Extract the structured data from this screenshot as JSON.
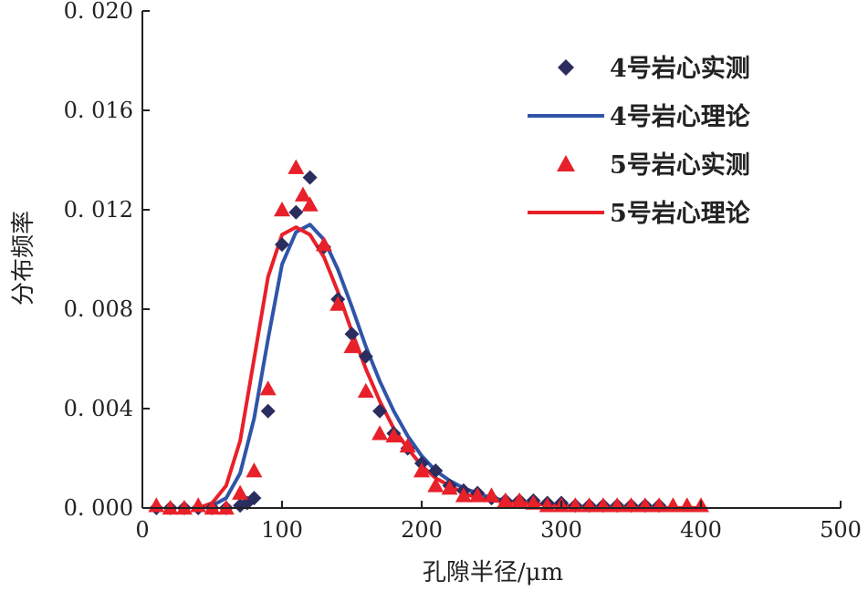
{
  "chart_data": {
    "type": "scatter",
    "xlabel": "孔隙半径/μm",
    "ylabel": "分布频率",
    "xlim": [
      0,
      500
    ],
    "ylim": [
      0,
      0.02
    ],
    "x_ticks": [
      0,
      100,
      200,
      300,
      400,
      500
    ],
    "x_tick_labels": [
      "0",
      "100",
      "200",
      "300",
      "400",
      "500"
    ],
    "y_ticks": [
      0,
      0.004,
      0.008,
      0.012,
      0.016,
      0.02
    ],
    "y_tick_labels": [
      "0. 000",
      "0. 004",
      "0. 008",
      "0. 012",
      "0. 016",
      "0. 020"
    ],
    "grid": false,
    "legend_position": "top-right",
    "series": [
      {
        "name": "4号岩心实测",
        "kind": "scatter",
        "marker": "diamond",
        "color": "#2b2d5e",
        "x": [
          10,
          20,
          30,
          40,
          50,
          60,
          70,
          75,
          80,
          90,
          100,
          110,
          120,
          130,
          140,
          150,
          160,
          170,
          180,
          190,
          200,
          210,
          220,
          230,
          240,
          250,
          260,
          270,
          280,
          290,
          300,
          310,
          320,
          330,
          340,
          350,
          360,
          370
        ],
        "y": [
          0.0,
          0.0,
          0.0,
          0.0,
          0.0,
          0.0,
          0.0001,
          0.0002,
          0.0004,
          0.0039,
          0.0106,
          0.0119,
          0.0133,
          0.0105,
          0.0084,
          0.007,
          0.0061,
          0.0039,
          0.003,
          0.0024,
          0.0018,
          0.0015,
          0.0009,
          0.0007,
          0.0006,
          0.0004,
          0.0003,
          0.0003,
          0.0003,
          0.0002,
          0.0002,
          0.0001,
          0.0001,
          0.0001,
          0.0001,
          0.0001,
          0.0001,
          0.0001
        ]
      },
      {
        "name": "4号岩心理论",
        "kind": "line",
        "color": "#2f55a8",
        "x": [
          40,
          50,
          60,
          70,
          80,
          90,
          100,
          110,
          120,
          130,
          140,
          150,
          160,
          170,
          180,
          190,
          200,
          210,
          220,
          230,
          240,
          250,
          270,
          300,
          330,
          360,
          400
        ],
        "y": [
          0.0,
          0.0001,
          0.0004,
          0.0014,
          0.0036,
          0.0068,
          0.0098,
          0.0111,
          0.0114,
          0.0108,
          0.0096,
          0.0081,
          0.0065,
          0.0051,
          0.0039,
          0.0029,
          0.0021,
          0.0015,
          0.0011,
          0.0008,
          0.0006,
          0.0004,
          0.0002,
          0.0001,
          0.0,
          0.0,
          0.0
        ]
      },
      {
        "name": "5号岩心实测",
        "kind": "scatter",
        "marker": "triangle",
        "color": "#e8202a",
        "x": [
          10,
          20,
          30,
          40,
          50,
          60,
          70,
          80,
          90,
          100,
          110,
          115,
          120,
          130,
          140,
          150,
          160,
          170,
          180,
          190,
          200,
          210,
          220,
          230,
          240,
          250,
          260,
          270,
          280,
          290,
          300,
          310,
          320,
          330,
          340,
          350,
          360,
          370,
          380,
          390,
          400
        ],
        "y": [
          0.0001,
          0.0,
          0.0,
          0.0001,
          0.0,
          0.0,
          0.0006,
          0.0015,
          0.0048,
          0.012,
          0.0137,
          0.0126,
          0.0122,
          0.0106,
          0.0082,
          0.0065,
          0.0047,
          0.003,
          0.0029,
          0.0025,
          0.0015,
          0.0009,
          0.0008,
          0.0005,
          0.0005,
          0.0005,
          0.0003,
          0.0003,
          0.0002,
          0.0001,
          0.0001,
          0.0001,
          0.0001,
          0.0001,
          0.0001,
          0.0001,
          0.0001,
          0.0001,
          0.0001,
          0.0001,
          0.0001
        ]
      },
      {
        "name": "5号岩心理论",
        "kind": "line",
        "color": "#e8202a",
        "x": [
          40,
          50,
          60,
          70,
          80,
          90,
          100,
          110,
          120,
          130,
          140,
          150,
          160,
          170,
          180,
          190,
          200,
          210,
          220,
          230,
          240,
          250,
          270,
          300,
          330,
          360,
          400
        ],
        "y": [
          0.0,
          0.0002,
          0.0009,
          0.0027,
          0.006,
          0.0093,
          0.011,
          0.0113,
          0.011,
          0.0101,
          0.0087,
          0.0071,
          0.0056,
          0.0043,
          0.0032,
          0.0024,
          0.0017,
          0.0012,
          0.0009,
          0.0006,
          0.0004,
          0.0003,
          0.0002,
          0.0001,
          0.0,
          0.0,
          0.0
        ]
      }
    ]
  }
}
